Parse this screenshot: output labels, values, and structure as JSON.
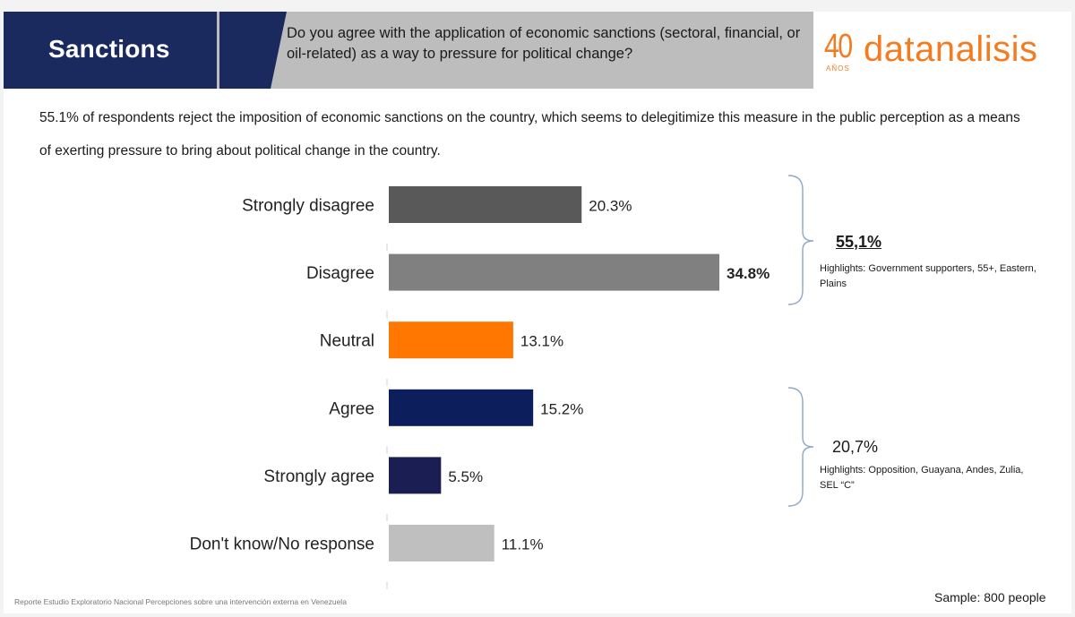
{
  "header": {
    "section_title": "Sanctions",
    "question": "Do you agree with the application of economic sanctions (sectoral, financial, or oil-related) as a way to pressure for political change?",
    "logo_number": "40",
    "logo_anos": "AÑOS",
    "logo_word": "datanalisis"
  },
  "summary": "55.1% of respondents reject the imposition of economic sanctions on the country, which seems to delegitimize this measure in the public perception as a means of exerting pressure to bring about political change in the country.",
  "chart_data": {
    "type": "bar",
    "orientation": "horizontal",
    "categories": [
      "Strongly disagree",
      "Disagree",
      "Neutral",
      "Agree",
      "Strongly agree",
      "Don't know/No response"
    ],
    "values": [
      20.3,
      34.8,
      13.1,
      15.2,
      5.5,
      11.1
    ],
    "value_labels": [
      "20.3%",
      "34.8%",
      "13.1%",
      "15.2%",
      "5.5%",
      "11.1%"
    ],
    "bold_label_index": 1,
    "colors": [
      "#595959",
      "#808080",
      "#ff7600",
      "#0c1f5c",
      "#1b1e52",
      "#bfbfbf"
    ],
    "xlim": [
      0,
      34.8
    ],
    "grid": false
  },
  "groups": [
    {
      "percent": "55,1%",
      "note": "Highlights: Government supporters, 55+, Eastern, Plains",
      "bold": true
    },
    {
      "percent": "20,7%",
      "note": "Highlights: Opposition, Guayana, Andes, Zulia, SEL “C”",
      "bold": false
    }
  ],
  "footer": {
    "source": "Reporte Estudio Exploratorio Nacional Percepciones sobre una intervención externa en Venezuela",
    "sample": "Sample: 800 people"
  },
  "colors": {
    "navy": "#1b2a5e",
    "header_gray": "#bdbdbd",
    "brand_orange": "#f47b20",
    "bracket": "#8fa9c8"
  }
}
